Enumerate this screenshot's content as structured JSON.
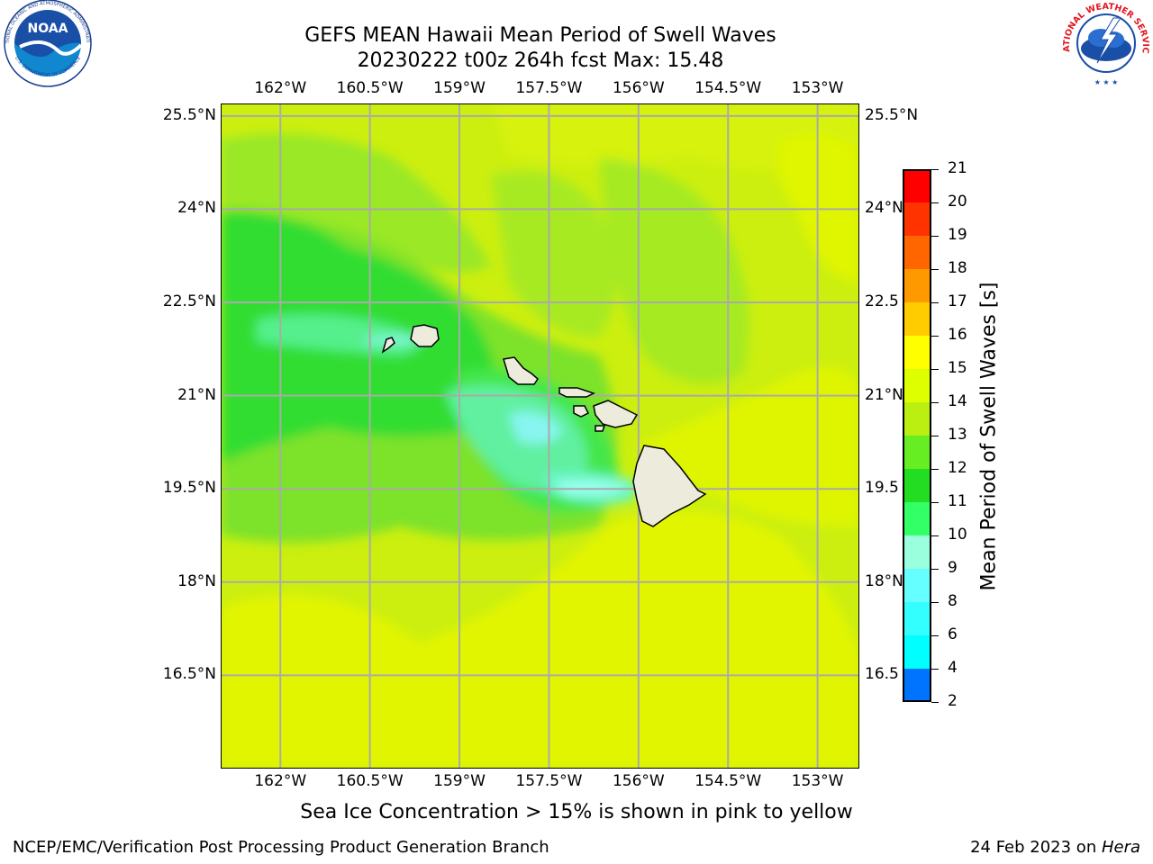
{
  "title": {
    "line1": "GEFS MEAN Hawaii Mean Period of Swell Waves",
    "line2": "20230222 t00z 264h fcst   Max: 15.48"
  },
  "logos": {
    "noaa": {
      "text": "NOAA",
      "ring_top": "NATIONAL OCEANIC AND ATMOSPHERIC ADMINISTRATION",
      "ring_bottom": "U.S. DEPARTMENT OF COMMERCE"
    },
    "nws": {
      "ring": "NATIONAL WEATHER SERVICE"
    }
  },
  "map": {
    "lon_labels": [
      "162°W",
      "160.5°W",
      "159°W",
      "157.5°W",
      "156°W",
      "154.5°W",
      "153°W"
    ],
    "lat_labels": [
      "25.5°N",
      "24°N",
      "22.5°N",
      "21°N",
      "19.5°N",
      "18°N",
      "16.5°N"
    ],
    "lat_labels_right": [
      "25.5°N",
      "24°N",
      "22.5",
      "21°N",
      "19.5",
      "18°N",
      "16.5"
    ],
    "lon_range": [
      -163.0,
      -152.3
    ],
    "lat_range": [
      15.0,
      25.7
    ],
    "grid": true
  },
  "colorbar": {
    "label": "Mean Period of Swell Waves [s]",
    "ticks": [
      "2",
      "4",
      "6",
      "8",
      "9",
      "10",
      "11",
      "12",
      "13",
      "14",
      "15",
      "16",
      "17",
      "18",
      "19",
      "20",
      "21"
    ],
    "colors": [
      "#0000ff",
      "#0073ff",
      "#00ffff",
      "#33ffff",
      "#66ffff",
      "#99ffdd",
      "#33ff66",
      "#22dd22",
      "#66ee22",
      "#bbee11",
      "#ddff00",
      "#ffff00",
      "#ffcc00",
      "#ff9900",
      "#ff6600",
      "#ff3300",
      "#ff0000"
    ]
  },
  "caption": "Sea Ice Concentration > 15% is shown in pink to yellow",
  "footer": {
    "left": "NCEP/EMC/Verification Post Processing Product Generation Branch",
    "right_date": "24 Feb 2023 on ",
    "right_host": "Hera"
  }
}
